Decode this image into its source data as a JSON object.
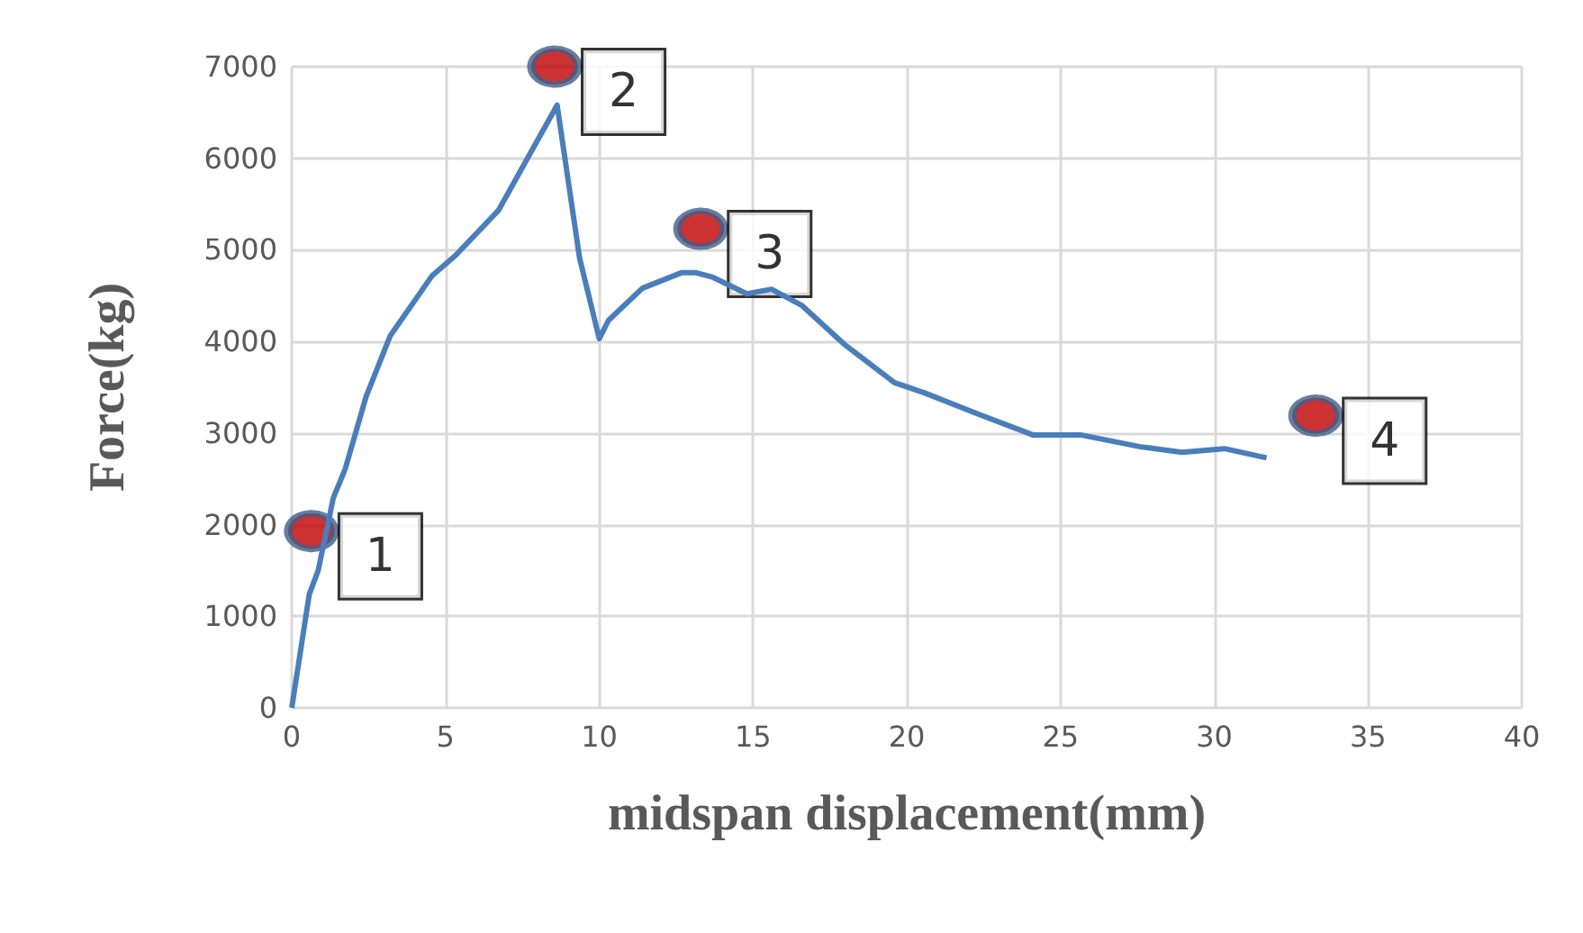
{
  "chart_data": {
    "type": "line",
    "xlabel": "midspan displacement(mm)",
    "ylabel": "Force(kg)",
    "xlim": [
      0,
      40
    ],
    "xticks": [
      0,
      5,
      10,
      15,
      20,
      25,
      30,
      35,
      40
    ],
    "ylim": [
      0,
      7000
    ],
    "yticks": [
      0,
      1000,
      2000,
      3000,
      4000,
      5000,
      6000,
      7000
    ],
    "grid": true,
    "series": [
      {
        "color": "#4a7ebb",
        "marker": "none",
        "x": [
          0,
          0.57,
          0.86,
          1.35,
          1.74,
          2.42,
          3.2,
          4.57,
          5.33,
          6.72,
          8.63,
          9.36,
          10.0,
          10.3,
          11.4,
          12.67,
          13.15,
          13.7,
          14.8,
          15.6,
          16.6,
          18.0,
          19.6,
          20.57,
          22.3,
          24.1,
          25.65,
          27.6,
          28.95,
          30.33,
          31.7
        ],
        "values": [
          0,
          1240,
          1500,
          2290,
          2610,
          3400,
          4060,
          4720,
          4940,
          5430,
          6580,
          4910,
          4030,
          4230,
          4580,
          4750,
          4750,
          4700,
          4520,
          4570,
          4390,
          3960,
          3550,
          3440,
          3210,
          2980,
          2980,
          2850,
          2790,
          2830,
          2730
        ]
      },
      {
        "type": "scatter",
        "color": "#c00000",
        "marker": "circle",
        "x": [
          0.64,
          8.55,
          13.3,
          33.3
        ],
        "values": [
          1930,
          7000,
          5230,
          3190
        ]
      }
    ],
    "annotations": [
      {
        "text": "1",
        "x": 0.64,
        "y": 1930
      },
      {
        "text": "2",
        "x": 8.55,
        "y": 7000
      },
      {
        "text": "3",
        "x": 13.3,
        "y": 5230
      },
      {
        "text": "4",
        "x": 33.3,
        "y": 3190
      }
    ]
  }
}
